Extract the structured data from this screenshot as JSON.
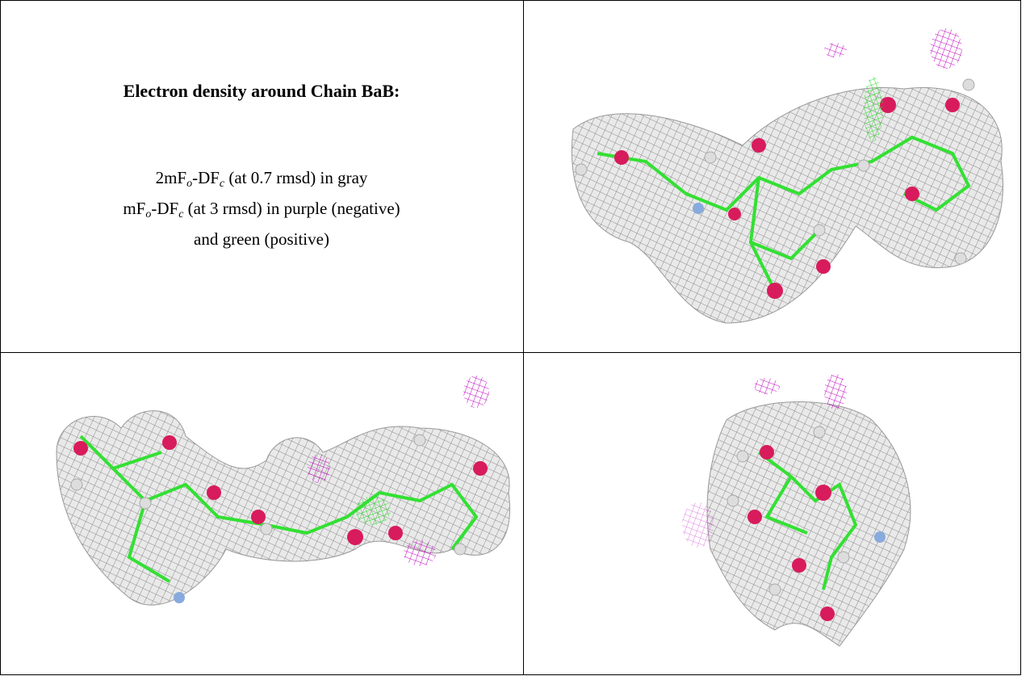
{
  "caption": {
    "title": "Electron density around Chain BaB:",
    "lines": [
      [
        {
          "text": "2mF"
        },
        {
          "sub": "o"
        },
        {
          "text": "-DF"
        },
        {
          "sub": "c"
        },
        {
          "text": " (at 0.7 rmsd) in gray"
        }
      ],
      [
        {
          "text": "mF"
        },
        {
          "sub": "o"
        },
        {
          "text": "-DF"
        },
        {
          "sub": "c"
        },
        {
          "text": " (at 3 rmsd) in purple (negative)"
        }
      ],
      [
        {
          "text": "and green (positive)"
        }
      ]
    ]
  }
}
